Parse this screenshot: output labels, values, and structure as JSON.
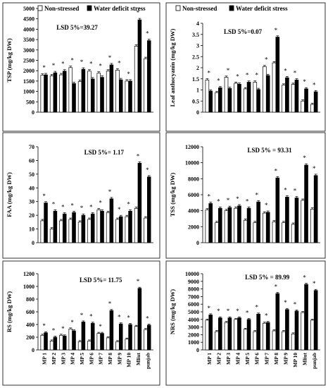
{
  "legend": {
    "series_a": "Non-stressed",
    "series_b": "Water deficit stress"
  },
  "chart_data": [
    {
      "type": "bar",
      "ylabel": "TSP  (mg/kg DW)",
      "lsd": "LSD 5%=39.27",
      "ylim": [
        0,
        5000
      ],
      "yticks": [
        0,
        500,
        1000,
        1500,
        2000,
        2500,
        3000,
        3500,
        4000,
        4500,
        5000
      ],
      "categories": [
        "MP 1",
        "MP 2",
        "MP 3",
        "MP 4",
        "MP 5",
        "MP 6",
        "MP 7",
        "MP 8",
        "MP 9",
        "MP 10",
        "Mliut",
        "punjab"
      ],
      "series": [
        {
          "name": "Non-stressed",
          "values": [
            1780,
            1750,
            1800,
            2150,
            1480,
            1980,
            1880,
            1980,
            2030,
            1500,
            3180,
            2580
          ]
        },
        {
          "name": "Water deficit stress",
          "values": [
            1800,
            1900,
            1980,
            1380,
            2070,
            1600,
            1680,
            2280,
            1560,
            1500,
            4450,
            3450
          ]
        }
      ]
    },
    {
      "type": "bar",
      "ylabel": "Leaf anthocyanin  (mg/kg DW)",
      "lsd": "LSD 5%=0.07",
      "ylim": [
        0,
        4
      ],
      "yticks": [
        "0",
        "0.5",
        "1",
        "1.5",
        "2",
        "2.5",
        "3",
        "3.5",
        "4"
      ],
      "categories": [
        "MP 1",
        "MP 2",
        "MP 3",
        "MP 4",
        "MP 5",
        "MP 6",
        "MP 7",
        "MP 8",
        "MP 9",
        "MP 10",
        "Mliut",
        "punjab"
      ],
      "series": [
        {
          "name": "Non-stressed",
          "values": [
            1.45,
            0.88,
            1.57,
            1.3,
            1.05,
            1.35,
            2.05,
            2.22,
            1.22,
            1.25,
            0.5,
            0.35
          ]
        },
        {
          "name": "Water deficit stress",
          "values": [
            0.95,
            1.1,
            1.07,
            1.26,
            1.35,
            1.02,
            1.65,
            3.38,
            1.55,
            1.45,
            1.05,
            0.92
          ]
        }
      ]
    },
    {
      "type": "bar",
      "ylabel": "FAA  (mg/kg DW)",
      "lsd": "LSD 5%= 1.17",
      "ylim": [
        0,
        70
      ],
      "yticks": [
        0,
        10,
        20,
        30,
        40,
        50,
        60,
        70
      ],
      "categories": [
        "MP 1",
        "MP 2",
        "MP 3",
        "MP 4",
        "MP 5",
        "MP 6",
        "MP 7",
        "MP 8",
        "MP 9",
        "MP 10",
        "Mliut",
        "punjab"
      ],
      "series": [
        {
          "name": "Non-stressed",
          "values": [
            16,
            10,
            16,
            17,
            15,
            17,
            24,
            22,
            17,
            19,
            25,
            18
          ]
        },
        {
          "name": "Water deficit stress",
          "values": [
            29,
            23,
            21,
            22,
            20,
            21,
            23,
            32,
            19,
            23,
            58,
            48
          ]
        }
      ]
    },
    {
      "type": "bar",
      "ylabel": "TSS  (mg/kg DW)",
      "lsd": "LSD 5% = 93.31",
      "ylim": [
        0,
        12000
      ],
      "yticks": [
        0,
        2000,
        4000,
        6000,
        8000,
        10000,
        12000
      ],
      "categories": [
        "MP 1",
        "MP 2",
        "MP 3",
        "MP 4",
        "MP 5",
        "MP 6",
        "MP 7",
        "MP 8",
        "MP 9",
        "MP 10",
        "Mliut",
        "punjab"
      ],
      "series": [
        {
          "name": "Non-stressed",
          "values": [
            4100,
            2500,
            4000,
            4300,
            2800,
            2500,
            3700,
            2600,
            2500,
            2300,
            5300,
            4200
          ]
        },
        {
          "name": "Water deficit stress",
          "values": [
            4900,
            4300,
            4400,
            4600,
            4300,
            5100,
            3800,
            8100,
            5700,
            5600,
            9700,
            8400
          ]
        }
      ]
    },
    {
      "type": "bar",
      "ylabel": "RS  (mg/kg DW)",
      "lsd": "LSD 5%= 11.75",
      "ylim": [
        0,
        1200
      ],
      "yticks": [
        0,
        200,
        400,
        600,
        800,
        1000,
        1200
      ],
      "categories": [
        "MP 1",
        "MP 2",
        "MP 3",
        "MP 4",
        "MP 5",
        "MP 6",
        "MP 7",
        "MP 8",
        "MP 9",
        "MP 10",
        "Mliut",
        "punjab"
      ],
      "series": [
        {
          "name": "Non-stressed",
          "values": [
            230,
            140,
            230,
            330,
            130,
            140,
            260,
            190,
            130,
            170,
            370,
            320
          ]
        },
        {
          "name": "Water deficit stress",
          "values": [
            270,
            200,
            220,
            300,
            440,
            420,
            260,
            620,
            410,
            400,
            970,
            390
          ]
        }
      ]
    },
    {
      "type": "bar",
      "ylabel": "NRS  (mg/kg DW)",
      "lsd": "LSD 5% = 89.99",
      "ylim": [
        0,
        10000
      ],
      "yticks": [
        0,
        1000,
        2000,
        3000,
        4000,
        5000,
        6000,
        7000,
        8000,
        9000,
        10000
      ],
      "categories": [
        "MP 1",
        "MP 2",
        "MP 3",
        "MP 4",
        "MP 5",
        "MP 6",
        "MP 7",
        "MP 8",
        "MP 9",
        "MP 10",
        "Mliut",
        "punjab"
      ],
      "series": [
        {
          "name": "Non-stressed",
          "values": [
            3900,
            2400,
            3600,
            4000,
            2700,
            2400,
            3500,
            2500,
            2400,
            2100,
            4900,
            3900
          ]
        },
        {
          "name": "Water deficit stress",
          "values": [
            4600,
            4200,
            4200,
            4200,
            4000,
            4700,
            3600,
            7400,
            5300,
            5100,
            8600,
            7800
          ]
        }
      ]
    }
  ]
}
